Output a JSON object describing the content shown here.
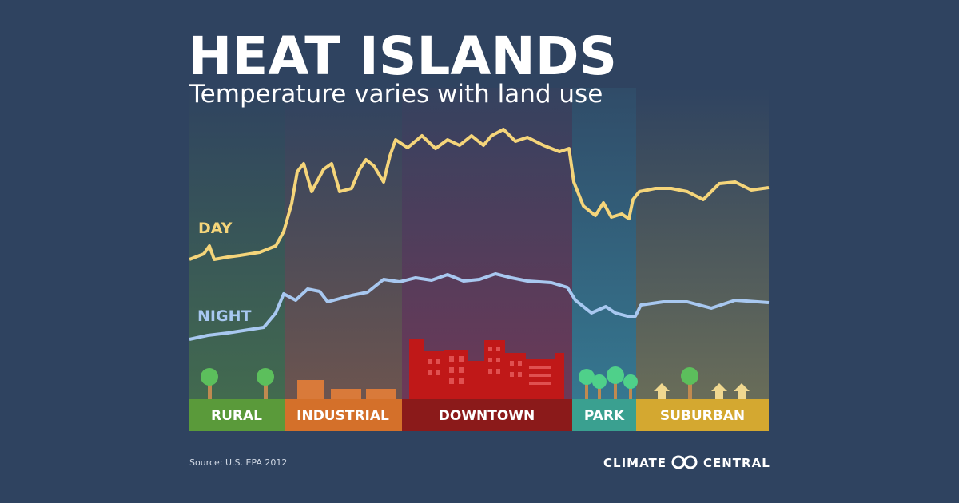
{
  "header": {
    "title": "HEAT ISLANDS",
    "subtitle": "Temperature varies with land use"
  },
  "series_labels": {
    "day": "DAY",
    "night": "NIGHT"
  },
  "zones": [
    "RURAL",
    "INDUSTRIAL",
    "DOWNTOWN",
    "PARK",
    "SUBURBAN"
  ],
  "footer": {
    "source": "Source: U.S. EPA 2012",
    "logo_left": "CLIMATE",
    "logo_right": "CENTRAL"
  }
}
